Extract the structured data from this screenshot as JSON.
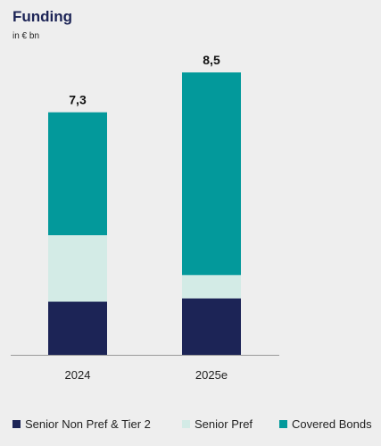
{
  "chart_data": {
    "type": "bar",
    "stacked": true,
    "title": "Funding",
    "subtitle": "in € bn",
    "categories": [
      "2024",
      "2025e"
    ],
    "series": [
      {
        "name": "Senior Non Pref & Tier 2",
        "values": [
          1.6,
          1.7
        ],
        "color": "#1c2456"
      },
      {
        "name": "Senior Pref",
        "values": [
          2.0,
          0.7
        ],
        "color": "#d3ebe6"
      },
      {
        "name": "Covered Bonds",
        "values": [
          3.7,
          6.1
        ],
        "color": "#03999b"
      }
    ],
    "totals": [
      "7,3",
      "8,5"
    ],
    "ylim": [
      0,
      9.2
    ],
    "grid": false,
    "legend_position": "bottom"
  }
}
